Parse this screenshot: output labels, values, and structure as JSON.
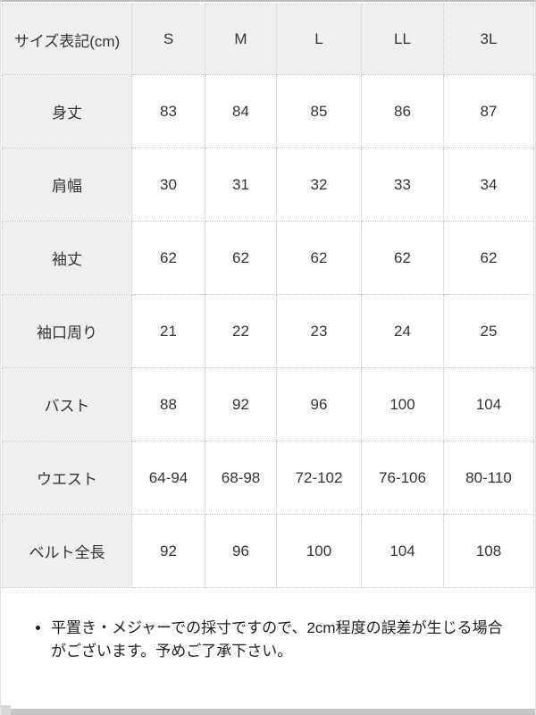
{
  "table": {
    "header_label": "サイズ表記(cm)",
    "size_columns": [
      "S",
      "M",
      "L",
      "LL",
      "3L"
    ],
    "rows": [
      {
        "label": "身丈",
        "values": [
          "83",
          "84",
          "85",
          "86",
          "87"
        ]
      },
      {
        "label": "肩幅",
        "values": [
          "30",
          "31",
          "32",
          "33",
          "34"
        ]
      },
      {
        "label": "袖丈",
        "values": [
          "62",
          "62",
          "62",
          "62",
          "62"
        ]
      },
      {
        "label": "袖口周り",
        "values": [
          "21",
          "22",
          "23",
          "24",
          "25"
        ]
      },
      {
        "label": "バスト",
        "values": [
          "88",
          "92",
          "96",
          "100",
          "104"
        ]
      },
      {
        "label": "ウエスト",
        "values": [
          "64-94",
          "68-98",
          "72-102",
          "76-106",
          "80-110"
        ]
      },
      {
        "label": "ベルト全長",
        "values": [
          "92",
          "96",
          "100",
          "104",
          "108"
        ]
      }
    ]
  },
  "notes": {
    "items": [
      "平置き・メジャーでの採寸ですので、2cm程度の誤差が生じる場合がございます。予めご了承下さい。"
    ]
  },
  "colors": {
    "header_bg": "#efefef",
    "cell_border": "#c5c5c5",
    "frame_top_border": "#bdbdbd",
    "scrollbar_track": "#c6c6c6",
    "table_text": "#333333",
    "note_text": "#1f1f1f"
  }
}
